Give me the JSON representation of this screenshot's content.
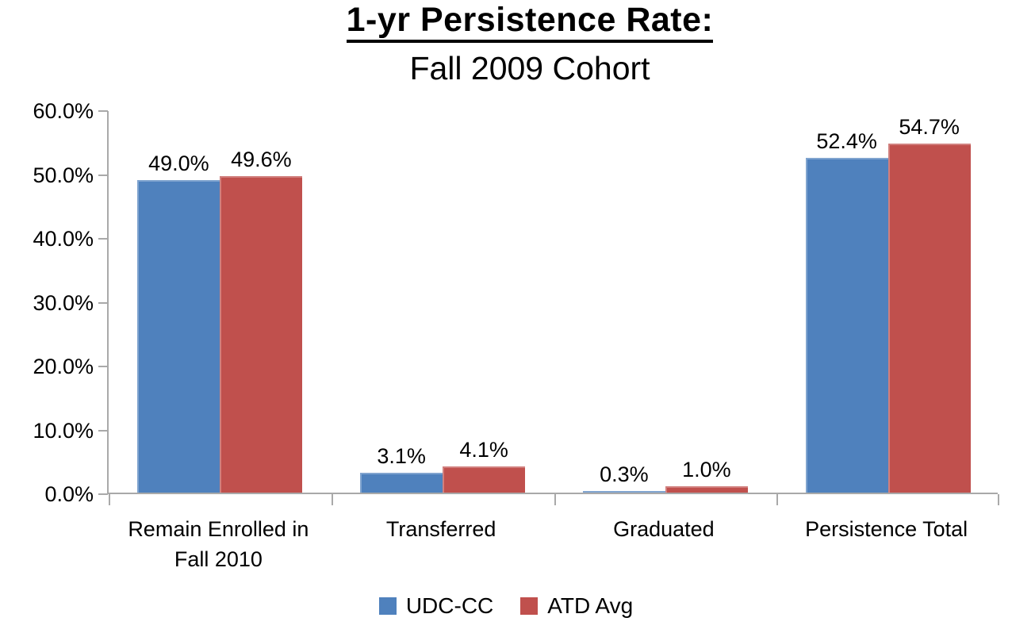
{
  "chart_data": {
    "type": "bar",
    "title": "1-yr Persistence Rate:",
    "subtitle": "Fall 2009 Cohort",
    "categories": [
      "Remain Enrolled in\nFall 2010",
      "Transferred",
      "Graduated",
      "Persistence Total"
    ],
    "series": [
      {
        "name": "UDC-CC",
        "color": "#4F81BD",
        "values": [
          49.0,
          3.1,
          0.3,
          52.4
        ],
        "labels": [
          "49.0%",
          "3.1%",
          "0.3%",
          "52.4%"
        ]
      },
      {
        "name": "ATD Avg",
        "color": "#C0504D",
        "values": [
          49.6,
          4.1,
          1.0,
          54.7
        ],
        "labels": [
          "49.6%",
          "4.1%",
          "1.0%",
          "54.7%"
        ]
      }
    ],
    "ylim": [
      0,
      60
    ],
    "ytick_step": 10,
    "ytick_labels": [
      "0.0%",
      "10.0%",
      "20.0%",
      "30.0%",
      "40.0%",
      "50.0%",
      "60.0%"
    ],
    "grid": false,
    "legend_position": "bottom",
    "axis_color": "#a9a9a9",
    "text_color": "#000000"
  }
}
